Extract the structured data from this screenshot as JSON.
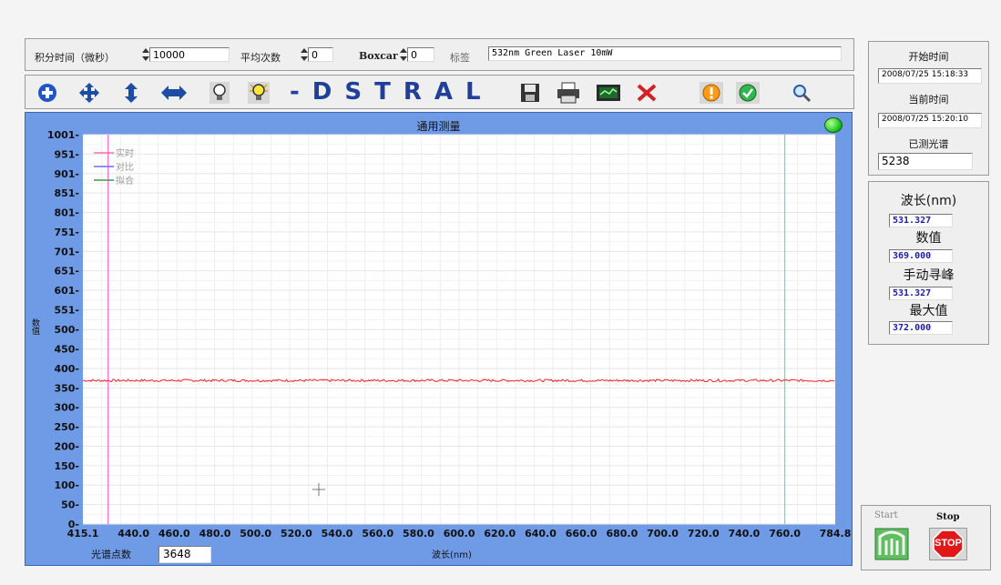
{
  "settings": {
    "integration_label": "积分时间（微秒）",
    "integration_value": "10000",
    "average_label": "平均次数",
    "average_value": "0",
    "boxcar_label": "Boxcar",
    "boxcar_value": "0",
    "tag_label": "标签",
    "tag_value": "532nm Green Laser 10mW"
  },
  "toolbar": {
    "brand_text": "-DSTRAL",
    "icons": [
      "zoom-in-icon",
      "pan-icon",
      "y-scale-icon",
      "x-scale-icon",
      "bulb-off-icon",
      "bulb-on-icon",
      "save-icon",
      "print-icon",
      "chart-icon",
      "delete-icon",
      "warning-icon",
      "ok-icon",
      "search-icon"
    ]
  },
  "graph": {
    "title": "通用测量",
    "y_axis_label": "数值",
    "x_axis_label": "波长(nm)",
    "legend": [
      {
        "name": "实时",
        "color": "#ff6fae"
      },
      {
        "name": "对比",
        "color": "#6a6aff"
      },
      {
        "name": "拟合",
        "color": "#3aa03a"
      }
    ],
    "spectrum_points_label": "光谱点数",
    "spectrum_points_value": "3648",
    "status_color": "#22cc22"
  },
  "chart_data": {
    "type": "line",
    "title": "通用测量",
    "xlabel": "波长(nm)",
    "ylabel": "数值",
    "x_ticks": [
      "415.1",
      "440.0",
      "460.0",
      "480.0",
      "500.0",
      "520.0",
      "540.0",
      "560.0",
      "580.0",
      "600.0",
      "620.0",
      "640.0",
      "660.0",
      "680.0",
      "700.0",
      "720.0",
      "740.0",
      "760.0",
      "784.8"
    ],
    "y_ticks": [
      "0",
      "50",
      "100",
      "150",
      "200",
      "250",
      "300",
      "350",
      "400",
      "450",
      "500",
      "551",
      "601",
      "651",
      "701",
      "751",
      "801",
      "851",
      "901",
      "951",
      "1001"
    ],
    "xlim": [
      415.1,
      784.8
    ],
    "ylim": [
      0,
      1001
    ],
    "series": [
      {
        "name": "实时",
        "color": "#ff1f1f",
        "baseline": 369,
        "x_range": [
          415.1,
          784.8
        ]
      }
    ],
    "cursors": [
      {
        "color": "#ff66dd",
        "x": 427.5
      },
      {
        "color": "#4fe0e0",
        "x": 760.0
      }
    ],
    "grid": true
  },
  "info": {
    "start_time_label": "开始时间",
    "start_time_value": "2008/07/25  15:18:33",
    "current_time_label": "当前时间",
    "current_time_value": "2008/07/25  15:20:10",
    "measured_label": "已测光谱",
    "measured_value": "5238"
  },
  "readout": {
    "wavelength_label": "波长(nm)",
    "wavelength_value": "531.327",
    "value_label": "数值",
    "value_value": "369.000",
    "manual_peak_label": "手动寻峰",
    "manual_peak_value": "531.327",
    "max_label": "最大值",
    "max_value": "372.000"
  },
  "control": {
    "start_label": "Start",
    "stop_label": "Stop",
    "stop_sign_text": "STOP"
  }
}
